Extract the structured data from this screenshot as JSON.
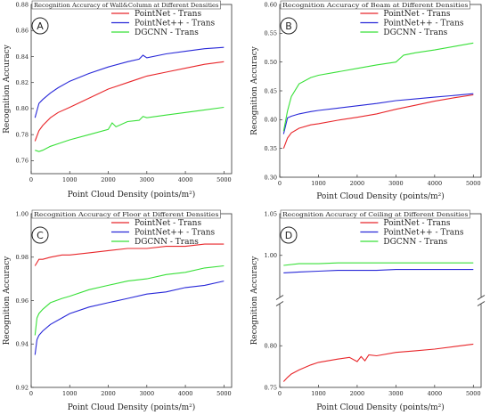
{
  "chart_data": [
    {
      "type": "line",
      "panel_label": "A",
      "title": "Recognition Accuracy of Wall&Column at Different Densities",
      "xlabel": "Point Cloud Density (points/m²)",
      "ylabel": "Recognition Accuracy",
      "xlim": [
        0,
        5200
      ],
      "ylim": [
        0.75,
        0.88
      ],
      "xticks": [
        0,
        1000,
        2000,
        3000,
        4000,
        5000
      ],
      "yticks": [
        0.76,
        0.78,
        0.8,
        0.82,
        0.84,
        0.86,
        0.88
      ],
      "ytick_labels": [
        "0.76",
        "0.78",
        "0.80",
        "0.82",
        "0.84",
        "0.86",
        "0.88"
      ],
      "legend_position": "top-right",
      "series": [
        {
          "name": "PointNet - Trans",
          "color": "#e8262a",
          "x": [
            100,
            200,
            300,
            500,
            700,
            1000,
            1500,
            2000,
            2500,
            2800,
            3000,
            3500,
            4000,
            4500,
            5000
          ],
          "y": [
            0.775,
            0.783,
            0.787,
            0.793,
            0.797,
            0.801,
            0.808,
            0.815,
            0.82,
            0.823,
            0.825,
            0.828,
            0.831,
            0.834,
            0.836
          ]
        },
        {
          "name": "PointNet++ - Trans",
          "color": "#2828d8",
          "x": [
            100,
            200,
            300,
            500,
            700,
            1000,
            1500,
            2000,
            2500,
            2800,
            2900,
            3000,
            3500,
            4000,
            4500,
            5000
          ],
          "y": [
            0.793,
            0.804,
            0.807,
            0.812,
            0.816,
            0.821,
            0.827,
            0.832,
            0.836,
            0.838,
            0.841,
            0.839,
            0.842,
            0.844,
            0.846,
            0.847
          ]
        },
        {
          "name": "DGCNN - Trans",
          "color": "#38e038",
          "x": [
            100,
            200,
            300,
            500,
            700,
            1000,
            1500,
            2000,
            2100,
            2200,
            2500,
            2800,
            2900,
            3000,
            3500,
            4000,
            4500,
            5000
          ],
          "y": [
            0.768,
            0.767,
            0.768,
            0.771,
            0.773,
            0.776,
            0.78,
            0.784,
            0.789,
            0.786,
            0.79,
            0.791,
            0.794,
            0.793,
            0.795,
            0.797,
            0.799,
            0.801
          ]
        }
      ]
    },
    {
      "type": "line",
      "panel_label": "B",
      "title": "Recognition Accuracy of Beam at Different Densities",
      "xlabel": "Point Cloud Density (points/m²)",
      "ylabel": "Recognition Accuracy",
      "xlim": [
        0,
        5200
      ],
      "ylim": [
        0.3,
        0.6
      ],
      "xticks": [
        0,
        1000,
        2000,
        3000,
        4000,
        5000
      ],
      "yticks": [
        0.3,
        0.35,
        0.4,
        0.45,
        0.5,
        0.55,
        0.6
      ],
      "ytick_labels": [
        "0.30",
        "0.35",
        "0.40",
        "0.45",
        "0.50",
        "0.55",
        "0.60"
      ],
      "legend_position": "top-right",
      "series": [
        {
          "name": "PointNet - Trans",
          "color": "#e8262a",
          "x": [
            100,
            200,
            300,
            500,
            800,
            1000,
            1500,
            2000,
            2500,
            3000,
            3500,
            4000,
            4500,
            5000
          ],
          "y": [
            0.35,
            0.368,
            0.377,
            0.385,
            0.391,
            0.393,
            0.399,
            0.404,
            0.41,
            0.418,
            0.425,
            0.432,
            0.438,
            0.443
          ]
        },
        {
          "name": "PointNet++ - Trans",
          "color": "#2828d8",
          "x": [
            100,
            200,
            300,
            500,
            800,
            1000,
            1500,
            2000,
            2500,
            3000,
            3500,
            4000,
            4500,
            5000
          ],
          "y": [
            0.375,
            0.403,
            0.406,
            0.41,
            0.414,
            0.416,
            0.42,
            0.424,
            0.428,
            0.433,
            0.436,
            0.439,
            0.442,
            0.445
          ]
        },
        {
          "name": "DGCNN - Trans",
          "color": "#38e038",
          "x": [
            100,
            200,
            300,
            500,
            800,
            1000,
            1500,
            2000,
            2500,
            3000,
            3200,
            3500,
            4000,
            4500,
            5000
          ],
          "y": [
            0.38,
            0.415,
            0.44,
            0.462,
            0.473,
            0.477,
            0.483,
            0.489,
            0.495,
            0.5,
            0.512,
            0.516,
            0.521,
            0.527,
            0.533
          ]
        }
      ]
    },
    {
      "type": "line",
      "panel_label": "C",
      "title": "Recognition Accuracy of Floor at Different Densities",
      "xlabel": "Point Cloud Density (points/m²)",
      "ylabel": "Recognition Accuracy",
      "xlim": [
        0,
        5200
      ],
      "ylim": [
        0.92,
        1.0
      ],
      "xticks": [
        0,
        1000,
        2000,
        3000,
        4000,
        5000
      ],
      "yticks": [
        0.92,
        0.94,
        0.96,
        0.98,
        1.0
      ],
      "ytick_labels": [
        "0.92",
        "0.94",
        "0.96",
        "0.98",
        "1.00"
      ],
      "legend_position": "top-right",
      "series": [
        {
          "name": "PointNet - Trans",
          "color": "#e8262a",
          "x": [
            100,
            200,
            300,
            500,
            800,
            1000,
            1500,
            2000,
            2500,
            3000,
            3500,
            4000,
            4500,
            5000
          ],
          "y": [
            0.976,
            0.979,
            0.979,
            0.98,
            0.981,
            0.981,
            0.982,
            0.983,
            0.984,
            0.984,
            0.985,
            0.985,
            0.986,
            0.986
          ]
        },
        {
          "name": "PointNet++ - Trans",
          "color": "#2828d8",
          "x": [
            100,
            150,
            200,
            300,
            500,
            800,
            1000,
            1500,
            2000,
            2500,
            3000,
            3500,
            4000,
            4500,
            5000
          ],
          "y": [
            0.935,
            0.942,
            0.944,
            0.946,
            0.949,
            0.952,
            0.954,
            0.957,
            0.959,
            0.961,
            0.963,
            0.964,
            0.966,
            0.967,
            0.969
          ]
        },
        {
          "name": "DGCNN - Trans",
          "color": "#38e038",
          "x": [
            100,
            150,
            200,
            300,
            500,
            800,
            1000,
            1500,
            2000,
            2500,
            3000,
            3500,
            4000,
            4500,
            5000
          ],
          "y": [
            0.944,
            0.952,
            0.954,
            0.956,
            0.959,
            0.961,
            0.962,
            0.965,
            0.967,
            0.969,
            0.97,
            0.972,
            0.973,
            0.975,
            0.976
          ]
        }
      ]
    },
    {
      "type": "line",
      "panel_label": "D",
      "title": "Recognition Accuracy of Ceiling at Different Densities",
      "xlabel": "Point Cloud Density (points/m²)",
      "ylabel": "Recognition Accuracy",
      "xlim": [
        0,
        5200
      ],
      "broken_y_axis": true,
      "y_segments": [
        {
          "range": [
            0.75,
            0.85
          ],
          "ticks": [
            0.75,
            0.8
          ],
          "tick_labels": [
            "0.75",
            "0.80"
          ]
        },
        {
          "range": [
            0.95,
            1.05
          ],
          "ticks": [
            1.0,
            1.05
          ],
          "tick_labels": [
            "1.00",
            "1.05"
          ]
        }
      ],
      "xticks": [
        0,
        1000,
        2000,
        3000,
        4000,
        5000
      ],
      "legend_position": "top-right",
      "series": [
        {
          "name": "PointNet - Trans",
          "color": "#e8262a",
          "x": [
            100,
            200,
            300,
            500,
            800,
            1000,
            1500,
            1800,
            2000,
            2100,
            2200,
            2300,
            2500,
            3000,
            3500,
            4000,
            4500,
            5000
          ],
          "y": [
            0.757,
            0.762,
            0.766,
            0.771,
            0.777,
            0.78,
            0.784,
            0.786,
            0.781,
            0.787,
            0.782,
            0.789,
            0.788,
            0.792,
            0.794,
            0.796,
            0.799,
            0.802
          ]
        },
        {
          "name": "PointNet++ - Trans",
          "color": "#2828d8",
          "x": [
            100,
            500,
            1000,
            1500,
            2000,
            2500,
            3000,
            3500,
            4000,
            4500,
            5000
          ],
          "y": [
            0.979,
            0.98,
            0.981,
            0.982,
            0.982,
            0.982,
            0.983,
            0.983,
            0.983,
            0.983,
            0.983
          ]
        },
        {
          "name": "DGCNN - Trans",
          "color": "#38e038",
          "x": [
            100,
            500,
            1000,
            1500,
            2000,
            2500,
            3000,
            3500,
            4000,
            4500,
            5000
          ],
          "y": [
            0.988,
            0.99,
            0.99,
            0.991,
            0.991,
            0.991,
            0.991,
            0.991,
            0.991,
            0.991,
            0.991
          ]
        }
      ]
    }
  ]
}
